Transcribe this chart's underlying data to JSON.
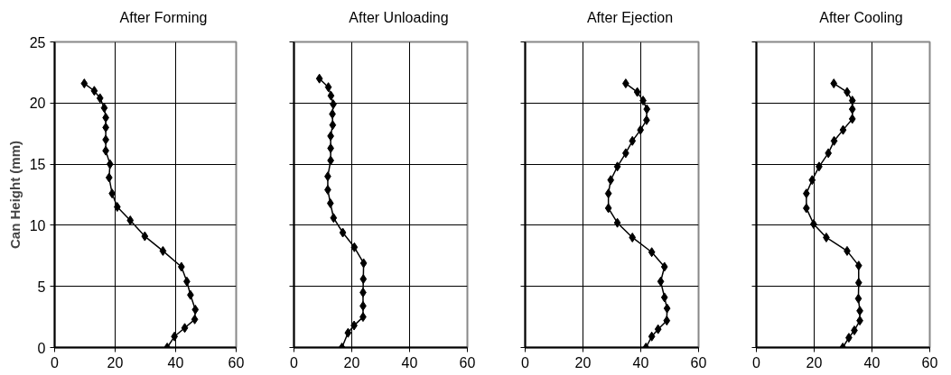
{
  "chart_data": [
    {
      "type": "line",
      "ylabel": "Can Height (mm)",
      "xlim": [
        0,
        60
      ],
      "ylim": [
        0,
        25
      ],
      "xticks": [
        0,
        20,
        40,
        60
      ],
      "yticks": [
        0,
        5,
        10,
        15,
        20,
        25
      ],
      "grid": true,
      "legend": "top",
      "marker": "diamond",
      "line_style": "solid",
      "series": [
        {
          "name": "After Forming",
          "color": "#000000",
          "x": [
            9.8,
            13.1,
            15.0,
            16.4,
            16.9,
            16.9,
            16.9,
            16.9,
            18.3,
            18.0,
            19.0,
            20.7,
            25.0,
            29.8,
            35.8,
            41.9,
            43.7,
            44.9,
            46.5,
            46.3,
            43.0,
            39.6,
            37.2
          ],
          "values": [
            21.6,
            21.0,
            20.4,
            19.6,
            18.8,
            18.0,
            17.0,
            16.1,
            15.0,
            13.9,
            12.6,
            11.5,
            10.4,
            9.1,
            7.9,
            6.6,
            5.4,
            4.3,
            3.1,
            2.3,
            1.6,
            0.9,
            0.0
          ]
        }
      ]
    },
    {
      "type": "line",
      "xlim": [
        0,
        60
      ],
      "ylim": [
        0,
        25
      ],
      "xticks": [
        0,
        20,
        40,
        60
      ],
      "yticks": [
        {
          "value": 0,
          "label": null
        },
        {
          "value": 5,
          "label": null
        },
        {
          "value": 10,
          "label": null
        },
        {
          "value": 15,
          "label": null
        },
        {
          "value": 20,
          "label": null
        },
        {
          "value": 25,
          "label": null
        }
      ],
      "tick_labels": "x",
      "grid": true,
      "legend": "top",
      "marker": "diamond",
      "line_style": "solid",
      "series": [
        {
          "name": "After Unloading",
          "color": "#000000",
          "x": [
            8.8,
            11.9,
            12.8,
            13.6,
            13.3,
            13.4,
            12.7,
            12.7,
            12.7,
            11.7,
            11.7,
            12.6,
            13.7,
            16.9,
            20.9,
            24.1,
            24.0,
            23.9,
            23.9,
            23.9,
            20.8,
            18.7,
            16.6
          ],
          "values": [
            22.0,
            21.3,
            20.6,
            19.9,
            19.1,
            18.2,
            17.3,
            16.3,
            15.3,
            14.0,
            12.9,
            11.8,
            10.6,
            9.4,
            8.2,
            6.9,
            5.6,
            4.5,
            3.4,
            2.5,
            1.8,
            1.2,
            0.0
          ]
        }
      ]
    },
    {
      "type": "line",
      "xlim": [
        0,
        60
      ],
      "ylim": [
        0,
        25
      ],
      "xticks": [
        0,
        20,
        40,
        60
      ],
      "yticks": [
        {
          "value": 0,
          "label": null
        },
        {
          "value": 5,
          "label": null
        },
        {
          "value": 10,
          "label": null
        },
        {
          "value": 15,
          "label": null
        },
        {
          "value": 20,
          "label": null
        },
        {
          "value": 25,
          "label": null
        }
      ],
      "tick_labels": "x",
      "grid": true,
      "legend": "top",
      "marker": "diamond",
      "line_style": "solid",
      "series": [
        {
          "name": "After Ejection",
          "color": "#000000",
          "x": [
            34.8,
            38.8,
            40.8,
            42.1,
            42.0,
            39.9,
            37.1,
            34.8,
            31.9,
            29.6,
            28.8,
            28.8,
            31.9,
            37.1,
            43.8,
            48.2,
            46.9,
            48.2,
            49.1,
            49.0,
            46.0,
            43.8,
            41.8
          ],
          "values": [
            21.6,
            20.9,
            20.2,
            19.5,
            18.6,
            17.8,
            16.9,
            15.9,
            14.8,
            13.7,
            12.6,
            11.4,
            10.2,
            9.0,
            7.8,
            6.6,
            5.4,
            4.1,
            3.2,
            2.2,
            1.5,
            0.9,
            0.0
          ]
        }
      ]
    },
    {
      "type": "line",
      "xlim": [
        0,
        60
      ],
      "ylim": [
        0,
        25
      ],
      "xticks": [
        0,
        20,
        40,
        60
      ],
      "yticks": [
        {
          "value": 0,
          "label": null
        },
        {
          "value": 5,
          "label": null
        },
        {
          "value": 10,
          "label": null
        },
        {
          "value": 15,
          "label": null
        },
        {
          "value": 20,
          "label": null
        },
        {
          "value": 25,
          "label": null
        }
      ],
      "tick_labels": "x",
      "grid": true,
      "legend": "top",
      "marker": "diamond",
      "line_style": "solid",
      "series": [
        {
          "name": "After Cooling",
          "color": "#000000",
          "x": [
            26.8,
            31.4,
            33.2,
            33.2,
            33.2,
            30.0,
            26.9,
            24.9,
            21.7,
            19.3,
            17.3,
            17.3,
            19.8,
            24.2,
            31.4,
            35.4,
            35.4,
            35.3,
            35.8,
            35.8,
            33.9,
            32.0,
            29.9
          ],
          "values": [
            21.6,
            20.9,
            20.2,
            19.5,
            18.7,
            17.8,
            16.9,
            15.9,
            14.8,
            13.7,
            12.6,
            11.4,
            10.1,
            9.0,
            7.9,
            6.7,
            5.3,
            4.0,
            3.0,
            2.2,
            1.4,
            0.8,
            0.0
          ]
        }
      ]
    }
  ]
}
